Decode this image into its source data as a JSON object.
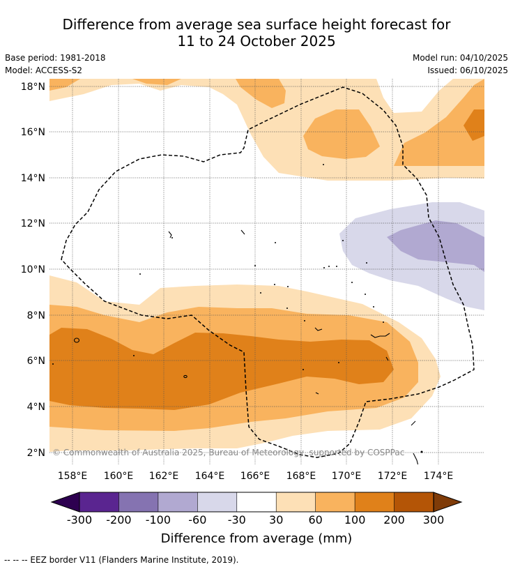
{
  "title": {
    "line1": "Difference from average sea surface height forecast for",
    "line2": "11 to 24 October 2025"
  },
  "meta": {
    "base_period": "Base period: 1981-2018",
    "model": "Model: ACCESS-S2",
    "model_run": "Model run: 04/10/2025",
    "issued": "Issued: 06/10/2025"
  },
  "map": {
    "lat_labels": [
      "18°N",
      "16°N",
      "14°N",
      "12°N",
      "10°N",
      "8°N",
      "6°N",
      "4°N",
      "2°N"
    ],
    "lon_labels": [
      "158°E",
      "160°E",
      "162°E",
      "164°E",
      "166°E",
      "168°E",
      "170°E",
      "172°E",
      "174°E"
    ],
    "copyright": "© Commonwealth of Australia 2025, Bureau of Meteorology, supported by COSPPac",
    "colors": {
      "pos_30_60": "#fde0b6",
      "pos_60_100": "#f9b35e",
      "pos_100_200": "#e0811a",
      "neg_30_60": "#d8d8ea",
      "neg_60_100": "#b1a9d1"
    }
  },
  "colorbar": {
    "ticks": [
      "-300",
      "-200",
      "-100",
      "-60",
      "-30",
      "30",
      "60",
      "100",
      "200",
      "300"
    ],
    "colors": [
      "#5a2590",
      "#8573b1",
      "#b1a9d1",
      "#d8d8ea",
      "#ffffff",
      "#fde0b6",
      "#f9b35e",
      "#e0811a",
      "#b45506"
    ],
    "under_color": "#2d0050",
    "over_color": "#7f3b08",
    "label": "Difference from average (mm)"
  },
  "footer": "-- -- -- EEZ border V11 (Flanders Marine Institute, 2019)."
}
